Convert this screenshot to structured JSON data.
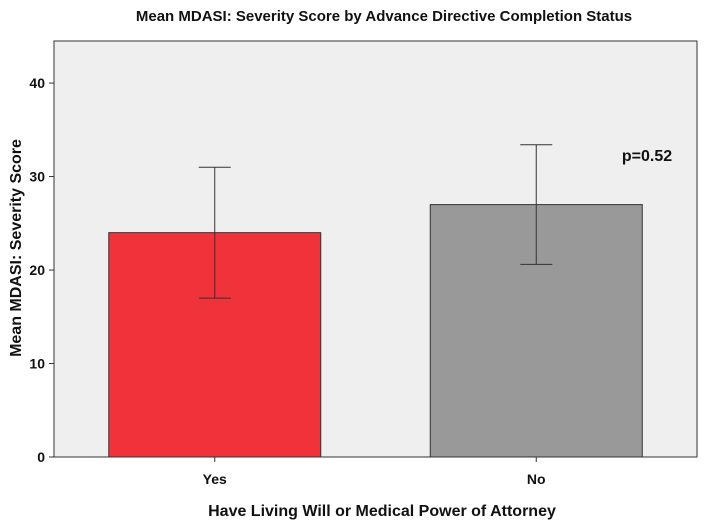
{
  "chart_data": {
    "type": "bar",
    "title": "Mean MDASI: Severity Score by Advance Directive Completion Status",
    "xlabel": "Have Living Will or Medical Power of Attorney",
    "ylabel": "Mean MDASI: Severity Score",
    "categories": [
      "Yes",
      "No"
    ],
    "values": [
      24,
      27
    ],
    "error_low": [
      17,
      20.6
    ],
    "error_high": [
      31,
      33.4
    ],
    "colors": [
      "#f0323a",
      "#999999"
    ],
    "ylim": [
      0,
      44.5
    ],
    "yticks": [
      0,
      10,
      20,
      30,
      40
    ],
    "grid": false,
    "background": "#efefef",
    "annotation": "p=0.52"
  }
}
